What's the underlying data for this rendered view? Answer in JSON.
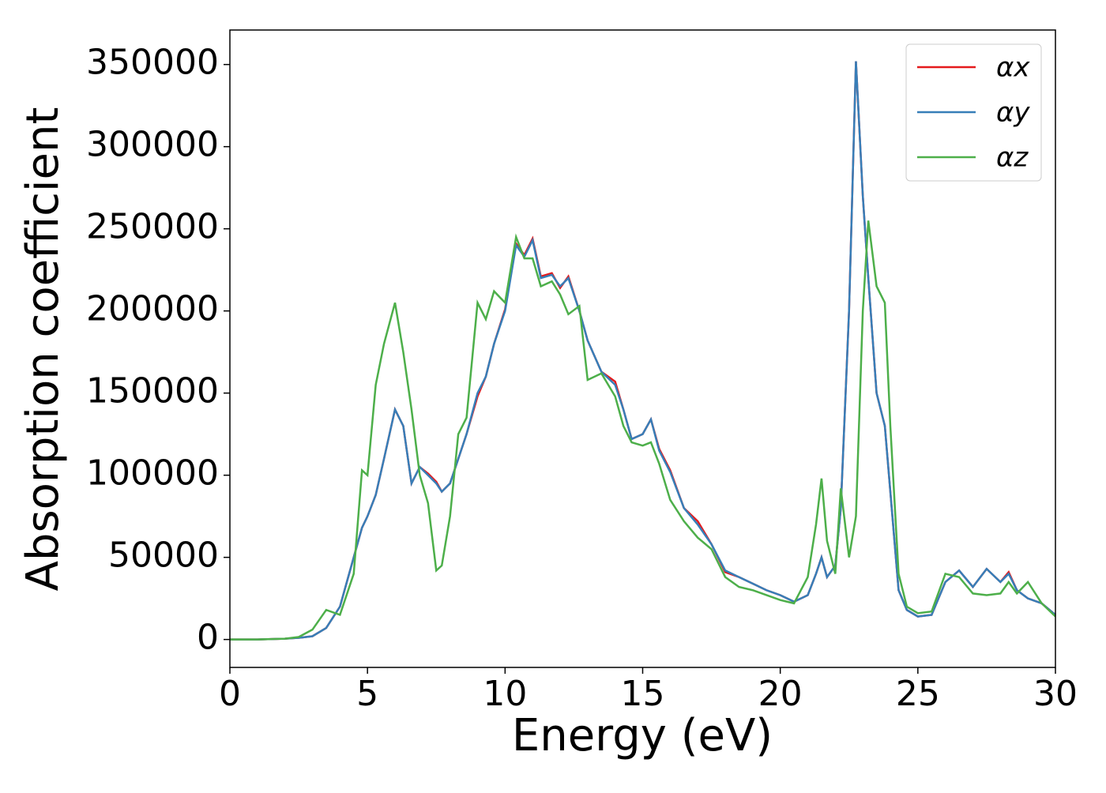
{
  "chart_data": {
    "type": "line",
    "x_label": "Energy (eV)",
    "y_label": "Absorption coefficient",
    "x": [
      0,
      1,
      2,
      2.5,
      3,
      3.5,
      4,
      4.5,
      4.8,
      5,
      5.3,
      5.6,
      6,
      6.3,
      6.6,
      6.9,
      7.2,
      7.5,
      7.7,
      8,
      8.3,
      8.6,
      9,
      9.3,
      9.6,
      10,
      10.4,
      10.7,
      11,
      11.3,
      11.7,
      12,
      12.3,
      12.7,
      13,
      13.5,
      14,
      14.3,
      14.6,
      15,
      15.3,
      15.6,
      16,
      16.5,
      17,
      17.5,
      18,
      18.5,
      19,
      19.5,
      20,
      20.5,
      21,
      21.3,
      21.5,
      21.7,
      22,
      22.2,
      22.5,
      22.75,
      23,
      23.2,
      23.5,
      23.8,
      24,
      24.3,
      24.6,
      25,
      25.5,
      26,
      26.5,
      27,
      27.5,
      28,
      28.3,
      28.6,
      29,
      29.5,
      30
    ],
    "series": [
      {
        "name": "αx",
        "color": "#e41a1c",
        "values": [
          0,
          0,
          500,
          1000,
          2000,
          7000,
          20000,
          50000,
          68000,
          75000,
          88000,
          110000,
          140000,
          130000,
          95000,
          105000,
          101000,
          96000,
          90000,
          95000,
          110000,
          125000,
          148000,
          160000,
          180000,
          201000,
          241000,
          234000,
          244000,
          221000,
          223000,
          214000,
          221000,
          200000,
          182000,
          163000,
          157000,
          140000,
          122000,
          125000,
          134000,
          116000,
          103000,
          80000,
          72000,
          58000,
          41000,
          38000,
          34000,
          30000,
          27000,
          23000,
          27000,
          40000,
          50000,
          38000,
          45000,
          80000,
          200000,
          352000,
          270000,
          220000,
          150000,
          130000,
          90000,
          30000,
          18000,
          14000,
          15000,
          35000,
          42000,
          32000,
          43000,
          35000,
          41000,
          30000,
          25000,
          22000,
          15000
        ]
      },
      {
        "name": "αy",
        "color": "#377eb8",
        "values": [
          0,
          0,
          500,
          1000,
          2000,
          7000,
          20000,
          50000,
          68000,
          75000,
          88000,
          110000,
          140000,
          130000,
          95000,
          105000,
          100000,
          95000,
          90000,
          95000,
          110000,
          125000,
          150000,
          160000,
          180000,
          200000,
          240000,
          233000,
          243000,
          220000,
          222000,
          215000,
          220000,
          200000,
          182000,
          163000,
          155000,
          140000,
          122000,
          125000,
          134000,
          115000,
          102000,
          80000,
          70000,
          58000,
          42000,
          38000,
          34000,
          30000,
          27000,
          23000,
          27000,
          40000,
          50000,
          38000,
          45000,
          80000,
          200000,
          352000,
          270000,
          220000,
          150000,
          130000,
          90000,
          30000,
          18000,
          14000,
          15000,
          35000,
          42000,
          32000,
          43000,
          35000,
          40000,
          30000,
          25000,
          22000,
          15000
        ]
      },
      {
        "name": "αz",
        "color": "#4daf4a",
        "values": [
          0,
          0,
          500,
          1500,
          6000,
          18000,
          15000,
          40000,
          103000,
          100000,
          155000,
          180000,
          205000,
          175000,
          140000,
          100000,
          83000,
          42000,
          45000,
          75000,
          125000,
          135000,
          205000,
          195000,
          212000,
          205000,
          245000,
          232000,
          232000,
          215000,
          218000,
          210000,
          198000,
          203000,
          158000,
          162000,
          148000,
          130000,
          120000,
          118000,
          120000,
          107000,
          85000,
          72000,
          62000,
          55000,
          38000,
          32000,
          30000,
          27000,
          24000,
          22000,
          38000,
          70000,
          98000,
          60000,
          40000,
          92000,
          50000,
          75000,
          200000,
          255000,
          215000,
          205000,
          130000,
          40000,
          20000,
          16000,
          17000,
          40000,
          38000,
          28000,
          27000,
          28000,
          35000,
          28000,
          35000,
          22000,
          14000
        ]
      }
    ],
    "xlim": [
      0,
      30
    ],
    "xticks": [
      0,
      5,
      10,
      15,
      20,
      25,
      30
    ],
    "ylim": [
      -17000,
      371000
    ],
    "yticks": [
      0,
      50000,
      100000,
      150000,
      200000,
      250000,
      300000,
      350000
    ],
    "legend": "upper right",
    "grid": false
  }
}
